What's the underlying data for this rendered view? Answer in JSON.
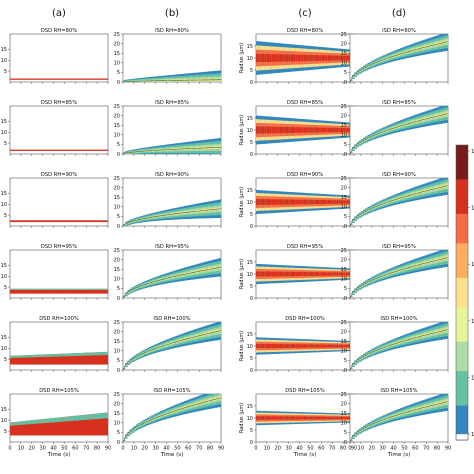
{
  "columns": [
    {
      "label": "(a)",
      "type": "DSD"
    },
    {
      "label": "(b)",
      "type": "ISD"
    },
    {
      "label": "(c)",
      "type": "DSD"
    },
    {
      "label": "(d)",
      "type": "ISD"
    }
  ],
  "colorbar": {
    "tick_labels": [
      "10",
      "10",
      "10",
      "10",
      "10",
      "10"
    ],
    "colormap": [
      "#7a1b1b",
      "#d7301f",
      "#f46d43",
      "#fdae61",
      "#fee08b",
      "#e6f598",
      "#abdda4",
      "#66c2a5",
      "#3288bd",
      "#5e4fa2",
      "#ffffff"
    ]
  },
  "chart_data": [
    {
      "type": "heatmap",
      "column": "a",
      "x_ticks": [
        0,
        10,
        20,
        30,
        40,
        50,
        60,
        70,
        80,
        90
      ],
      "xlabel": "Time (s)",
      "xlim": [
        0,
        90
      ],
      "y_ticks": [
        5,
        10,
        15
      ],
      "ylim": [
        0,
        22
      ],
      "panels": [
        {
          "title": "DSD RH=80%",
          "band_low": 1.0,
          "band_high": 1.6,
          "growth_rate": 0.0
        },
        {
          "title": "DSD RH=85%",
          "band_low": 1.4,
          "band_high": 2.0,
          "growth_rate": 0.0
        },
        {
          "title": "DSD RH=90%",
          "band_low": 1.8,
          "band_high": 2.6,
          "growth_rate": 0.0
        },
        {
          "title": "DSD RH=95%",
          "band_low": 2.0,
          "band_high": 4.2,
          "growth_rate": 0.0
        },
        {
          "title": "DSD RH=100%",
          "band_low": 2.5,
          "band_high": 6.5,
          "growth_rate": 0.02
        },
        {
          "title": "DSD RH=105%",
          "band_low": 3.0,
          "band_high": 9.0,
          "growth_rate": 0.05
        }
      ]
    },
    {
      "type": "heatmap",
      "column": "b",
      "x_ticks": [
        0,
        10,
        20,
        30,
        40,
        50,
        60,
        70,
        80,
        90
      ],
      "xlabel": "Time (s)",
      "xlim": [
        0,
        90
      ],
      "y_ticks": [
        0,
        5,
        10,
        15,
        20,
        25
      ],
      "ylim": [
        0,
        25
      ],
      "panels": [
        {
          "title": "ISD RH=80%",
          "final_radius": 1.2
        },
        {
          "title": "ISD RH=85%",
          "final_radius": 3.5
        },
        {
          "title": "ISD RH=90%",
          "final_radius": 9.0
        },
        {
          "title": "ISD RH=95%",
          "final_radius": 16.0
        },
        {
          "title": "ISD RH=100%",
          "final_radius": 20.5
        },
        {
          "title": "ISD RH=105%",
          "final_radius": 23.0
        }
      ]
    },
    {
      "type": "heatmap",
      "column": "c",
      "ylabel": "Radius (μm)",
      "x_ticks": [
        0,
        10,
        20,
        30,
        40,
        50,
        60,
        70,
        80,
        90
      ],
      "xlabel": "Time (s)",
      "xlim": [
        0,
        90
      ],
      "y_ticks": [
        0,
        5,
        10,
        15
      ],
      "ylim": [
        0,
        20
      ],
      "panels": [
        {
          "title": "DSD RH=80%",
          "spread": 6.0
        },
        {
          "title": "DSD RH=85%",
          "spread": 5.0
        },
        {
          "title": "DSD RH=90%",
          "spread": 4.0
        },
        {
          "title": "DSD RH=95%",
          "spread": 3.2
        },
        {
          "title": "DSD RH=100%",
          "spread": 2.6
        },
        {
          "title": "DSD RH=105%",
          "spread": 2.0
        }
      ]
    },
    {
      "type": "heatmap",
      "column": "d",
      "x_ticks": [
        0,
        10,
        20,
        30,
        40,
        50,
        60,
        70,
        80,
        90
      ],
      "xlabel": "Time (s)",
      "xlim": [
        0,
        90
      ],
      "y_ticks": [
        0,
        5,
        10,
        15,
        20,
        25
      ],
      "ylim": [
        0,
        25
      ],
      "panels": [
        {
          "title": "ISD RH=80%",
          "final_radius": 21.0
        },
        {
          "title": "ISD RH=85%",
          "final_radius": 21.0
        },
        {
          "title": "ISD RH=90%",
          "final_radius": 21.0
        },
        {
          "title": "ISD RH=95%",
          "final_radius": 21.0
        },
        {
          "title": "ISD RH=100%",
          "final_radius": 21.0
        },
        {
          "title": "ISD RH=105%",
          "final_radius": 21.0
        }
      ]
    }
  ]
}
